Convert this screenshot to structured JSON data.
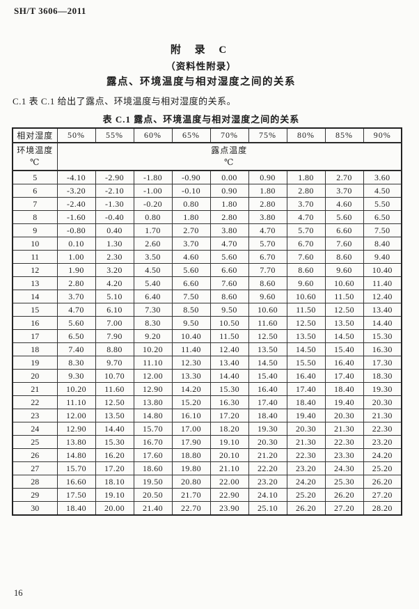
{
  "page": {
    "doc_number": "SH/T 3606—2011",
    "page_number": "16"
  },
  "appendix": {
    "title": "附 录 C",
    "subtitle": "（资料性附录）",
    "heading": "露点、环境温度与相对湿度之间的关系",
    "clause": "C.1  表 C.1 给出了露点、环境温度与相对湿度的关系。"
  },
  "table": {
    "caption": "表 C.1  露点、环境温度与相对湿度之间的关系",
    "header": {
      "corner_top": "相对湿度",
      "corner_bottom_line1": "环境温度",
      "corner_bottom_line2": "℃",
      "humidity_cols": [
        "50%",
        "55%",
        "60%",
        "65%",
        "70%",
        "75%",
        "80%",
        "85%",
        "90%"
      ],
      "dew_point_line1": "露点温度",
      "dew_point_line2": "℃"
    },
    "rows": [
      {
        "temp": "5",
        "values": [
          "-4.10",
          "-2.90",
          "-1.80",
          "-0.90",
          "0.00",
          "0.90",
          "1.80",
          "2.70",
          "3.60"
        ]
      },
      {
        "temp": "6",
        "values": [
          "-3.20",
          "-2.10",
          "-1.00",
          "-0.10",
          "0.90",
          "1.80",
          "2.80",
          "3.70",
          "4.50"
        ]
      },
      {
        "temp": "7",
        "values": [
          "-2.40",
          "-1.30",
          "-0.20",
          "0.80",
          "1.80",
          "2.80",
          "3.70",
          "4.60",
          "5.50"
        ]
      },
      {
        "temp": "8",
        "values": [
          "-1.60",
          "-0.40",
          "0.80",
          "1.80",
          "2.80",
          "3.80",
          "4.70",
          "5.60",
          "6.50"
        ]
      },
      {
        "temp": "9",
        "values": [
          "-0.80",
          "0.40",
          "1.70",
          "2.70",
          "3.80",
          "4.70",
          "5.70",
          "6.60",
          "7.50"
        ]
      },
      {
        "temp": "10",
        "values": [
          "0.10",
          "1.30",
          "2.60",
          "3.70",
          "4.70",
          "5.70",
          "6.70",
          "7.60",
          "8.40"
        ]
      },
      {
        "temp": "11",
        "values": [
          "1.00",
          "2.30",
          "3.50",
          "4.60",
          "5.60",
          "6.70",
          "7.60",
          "8.60",
          "9.40"
        ]
      },
      {
        "temp": "12",
        "values": [
          "1.90",
          "3.20",
          "4.50",
          "5.60",
          "6.60",
          "7.70",
          "8.60",
          "9.60",
          "10.40"
        ]
      },
      {
        "temp": "13",
        "values": [
          "2.80",
          "4.20",
          "5.40",
          "6.60",
          "7.60",
          "8.60",
          "9.60",
          "10.60",
          "11.40"
        ]
      },
      {
        "temp": "14",
        "values": [
          "3.70",
          "5.10",
          "6.40",
          "7.50",
          "8.60",
          "9.60",
          "10.60",
          "11.50",
          "12.40"
        ]
      },
      {
        "temp": "15",
        "values": [
          "4.70",
          "6.10",
          "7.30",
          "8.50",
          "9.50",
          "10.60",
          "11.50",
          "12.50",
          "13.40"
        ]
      },
      {
        "temp": "16",
        "values": [
          "5.60",
          "7.00",
          "8.30",
          "9.50",
          "10.50",
          "11.60",
          "12.50",
          "13.50",
          "14.40"
        ]
      },
      {
        "temp": "17",
        "values": [
          "6.50",
          "7.90",
          "9.20",
          "10.40",
          "11.50",
          "12.50",
          "13.50",
          "14.50",
          "15.30"
        ]
      },
      {
        "temp": "18",
        "values": [
          "7.40",
          "8.80",
          "10.20",
          "11.40",
          "12.40",
          "13.50",
          "14.50",
          "15.40",
          "16.30"
        ]
      },
      {
        "temp": "19",
        "values": [
          "8.30",
          "9.70",
          "11.10",
          "12.30",
          "13.40",
          "14.50",
          "15.50",
          "16.40",
          "17.30"
        ]
      },
      {
        "temp": "20",
        "values": [
          "9.30",
          "10.70",
          "12.00",
          "13.30",
          "14.40",
          "15.40",
          "16.40",
          "17.40",
          "18.30"
        ]
      },
      {
        "temp": "21",
        "values": [
          "10.20",
          "11.60",
          "12.90",
          "14.20",
          "15.30",
          "16.40",
          "17.40",
          "18.40",
          "19.30"
        ]
      },
      {
        "temp": "22",
        "values": [
          "11.10",
          "12.50",
          "13.80",
          "15.20",
          "16.30",
          "17.40",
          "18.40",
          "19.40",
          "20.30"
        ]
      },
      {
        "temp": "23",
        "values": [
          "12.00",
          "13.50",
          "14.80",
          "16.10",
          "17.20",
          "18.40",
          "19.40",
          "20.30",
          "21.30"
        ]
      },
      {
        "temp": "24",
        "values": [
          "12.90",
          "14.40",
          "15.70",
          "17.00",
          "18.20",
          "19.30",
          "20.30",
          "21.30",
          "22.30"
        ]
      },
      {
        "temp": "25",
        "values": [
          "13.80",
          "15.30",
          "16.70",
          "17.90",
          "19.10",
          "20.30",
          "21.30",
          "22.30",
          "23.20"
        ]
      },
      {
        "temp": "26",
        "values": [
          "14.80",
          "16.20",
          "17.60",
          "18.80",
          "20.10",
          "21.20",
          "22.30",
          "23.30",
          "24.20"
        ]
      },
      {
        "temp": "27",
        "values": [
          "15.70",
          "17.20",
          "18.60",
          "19.80",
          "21.10",
          "22.20",
          "23.20",
          "24.30",
          "25.20"
        ]
      },
      {
        "temp": "28",
        "values": [
          "16.60",
          "18.10",
          "19.50",
          "20.80",
          "22.00",
          "23.20",
          "24.20",
          "25.30",
          "26.20"
        ]
      },
      {
        "temp": "29",
        "values": [
          "17.50",
          "19.10",
          "20.50",
          "21.70",
          "22.90",
          "24.10",
          "25.20",
          "26.20",
          "27.20"
        ]
      },
      {
        "temp": "30",
        "values": [
          "18.40",
          "20.00",
          "21.40",
          "22.70",
          "23.90",
          "25.10",
          "26.20",
          "27.20",
          "28.20"
        ]
      }
    ]
  }
}
